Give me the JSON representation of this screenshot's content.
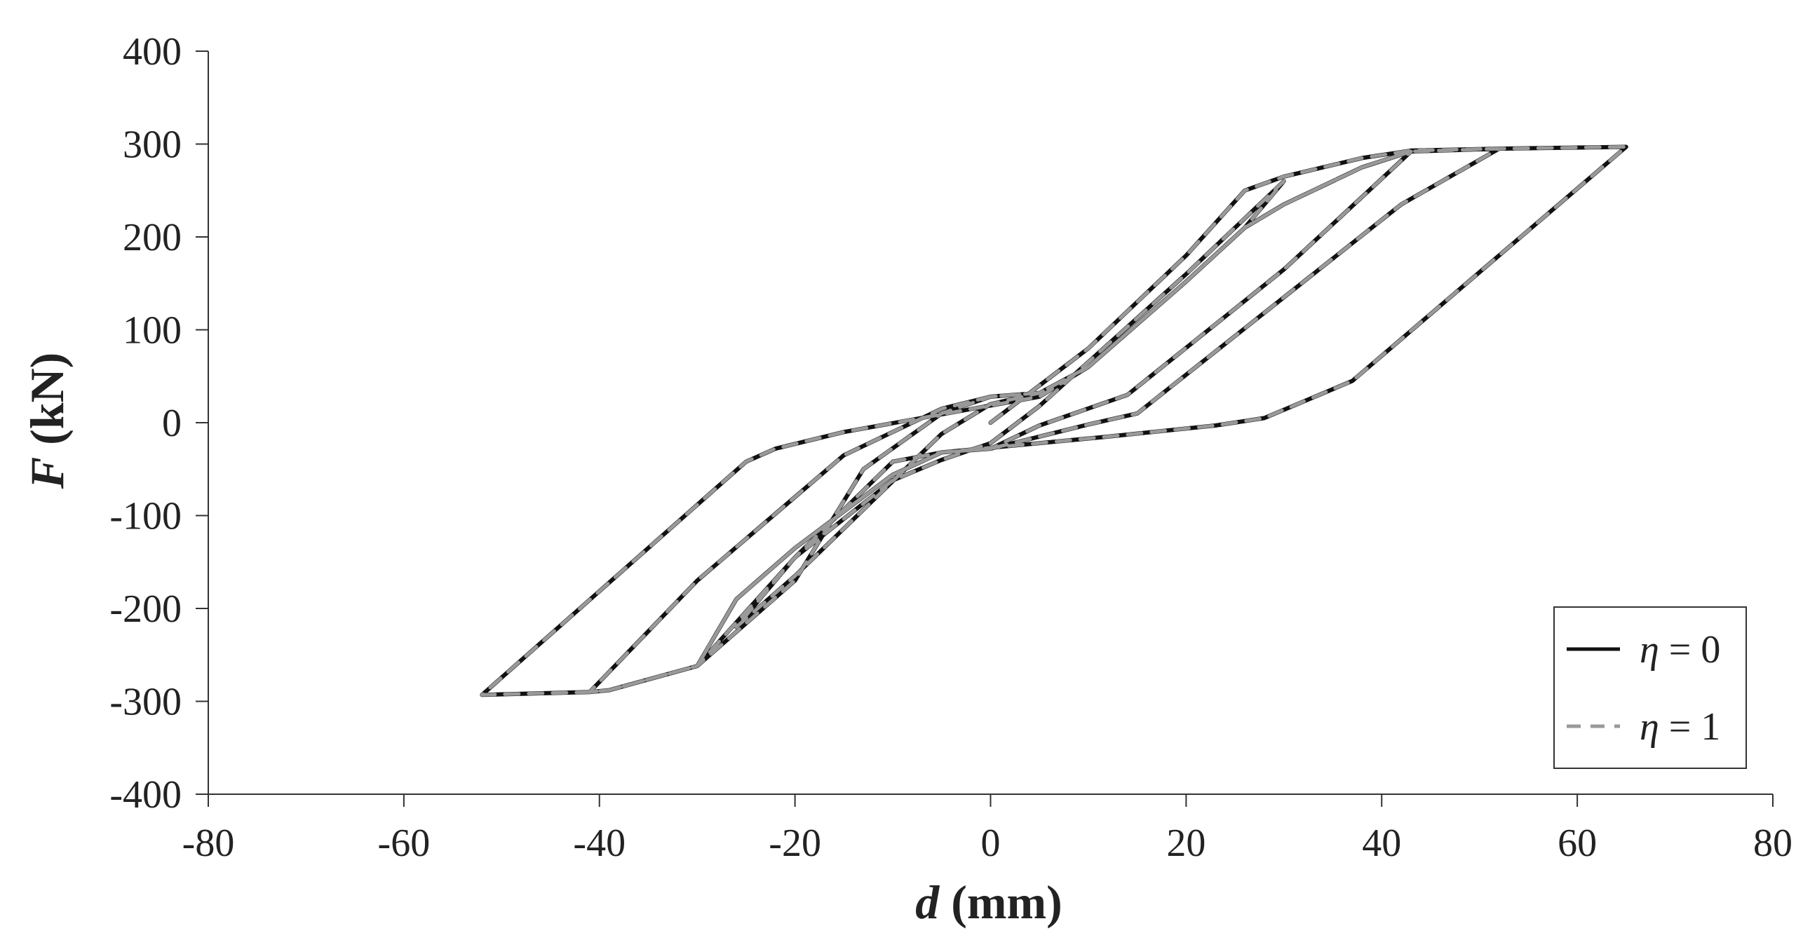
{
  "chart_data": {
    "type": "line",
    "title": "",
    "xlabel": "d (mm)",
    "ylabel": "F (kN)",
    "xlim": [
      -80,
      80
    ],
    "ylim": [
      -400,
      400
    ],
    "x_ticks": [
      -80,
      -60,
      -40,
      -20,
      0,
      20,
      40,
      60,
      80
    ],
    "y_ticks": [
      -400,
      -300,
      -200,
      -100,
      0,
      100,
      200,
      300,
      400
    ],
    "x_tick_labels": [
      "-80",
      "-60",
      "-40",
      "-20",
      "0",
      "20",
      "40",
      "60",
      "80"
    ],
    "y_tick_labels": [
      "-400",
      "-300",
      "-200",
      "-100",
      "0",
      "100",
      "200",
      "300",
      "400"
    ],
    "grid": false,
    "legend": {
      "position": "bottom-right"
    },
    "series": [
      {
        "name": "η = 0",
        "color": "#111111",
        "dash": "solid",
        "x": [
          0,
          10,
          20,
          26,
          30,
          38,
          43,
          52,
          65,
          37,
          28,
          23,
          12,
          -5,
          -10,
          -20,
          -26,
          -30,
          -39,
          -41,
          -52,
          -25,
          -22,
          -15,
          5,
          10,
          20,
          26,
          30,
          38,
          43,
          52,
          42,
          30,
          15,
          10,
          0,
          -5,
          -10,
          -20,
          -26,
          -30,
          -39,
          -41,
          -30,
          -15,
          -5,
          0,
          5,
          10,
          20,
          26,
          30,
          38,
          43,
          30,
          14,
          5,
          0,
          -5,
          -10,
          -20,
          -26,
          -30,
          -20,
          -13,
          -5,
          0,
          5,
          10,
          20,
          26,
          30,
          20,
          5,
          0,
          -5,
          -10,
          -20,
          -26,
          -20,
          -5,
          0,
          5
        ],
        "y": [
          0,
          80,
          180,
          250,
          265,
          285,
          293,
          295,
          297,
          45,
          5,
          -3,
          -15,
          -32,
          -42,
          -145,
          -215,
          -262,
          -288,
          -290,
          -293,
          -42,
          -28,
          -10,
          28,
          60,
          152,
          210,
          235,
          275,
          292,
          295,
          235,
          135,
          10,
          -2,
          -28,
          -32,
          -56,
          -135,
          -190,
          -262,
          -288,
          -290,
          -170,
          -35,
          15,
          28,
          32,
          60,
          152,
          210,
          235,
          275,
          292,
          165,
          30,
          -3,
          -28,
          -32,
          -56,
          -135,
          -190,
          -262,
          -170,
          -50,
          10,
          28,
          32,
          60,
          152,
          210,
          260,
          160,
          18,
          -22,
          -40,
          -62,
          -145,
          -220,
          -165,
          -12,
          20,
          32
        ]
      },
      {
        "name": "η = 1",
        "color": "#999999",
        "dash": "dashed",
        "x": [
          0,
          10,
          20,
          26,
          30,
          38,
          43,
          52,
          65,
          37,
          28,
          23,
          12,
          -5,
          -10,
          -20,
          -26,
          -30,
          -39,
          -41,
          -52,
          -25,
          -22,
          -15,
          5,
          10,
          20,
          26,
          30,
          38,
          43,
          52,
          42,
          30,
          15,
          10,
          0,
          -5,
          -10,
          -20,
          -26,
          -30,
          -39,
          -41,
          -30,
          -15,
          -5,
          0,
          5,
          10,
          20,
          26,
          30,
          38,
          43,
          30,
          14,
          5,
          0,
          -5,
          -10,
          -20,
          -26,
          -30,
          -20,
          -13,
          -5,
          0,
          5,
          10,
          20,
          26,
          30,
          20,
          5,
          0,
          -5,
          -10,
          -20,
          -26,
          -20,
          -5,
          0,
          5
        ],
        "y": [
          0,
          80,
          180,
          250,
          265,
          285,
          293,
          295,
          297,
          45,
          5,
          -3,
          -15,
          -32,
          -42,
          -145,
          -215,
          -262,
          -288,
          -290,
          -293,
          -42,
          -28,
          -10,
          28,
          60,
          152,
          210,
          235,
          275,
          292,
          295,
          235,
          135,
          10,
          -2,
          -28,
          -32,
          -56,
          -135,
          -190,
          -262,
          -288,
          -290,
          -170,
          -35,
          15,
          28,
          32,
          60,
          152,
          210,
          235,
          275,
          292,
          165,
          30,
          -3,
          -28,
          -32,
          -56,
          -135,
          -190,
          -262,
          -170,
          -50,
          10,
          28,
          32,
          60,
          152,
          210,
          260,
          160,
          18,
          -22,
          -40,
          -62,
          -145,
          -220,
          -165,
          -12,
          20,
          32
        ]
      }
    ],
    "legend_entries": [
      {
        "symbol": "η",
        "text": " = 0"
      },
      {
        "symbol": "η",
        "text": " = 1"
      }
    ],
    "axis_label_parts": {
      "x": {
        "var": "d",
        "unit": " (mm)"
      },
      "y": {
        "var": "F",
        "unit": " (kN)"
      }
    }
  }
}
